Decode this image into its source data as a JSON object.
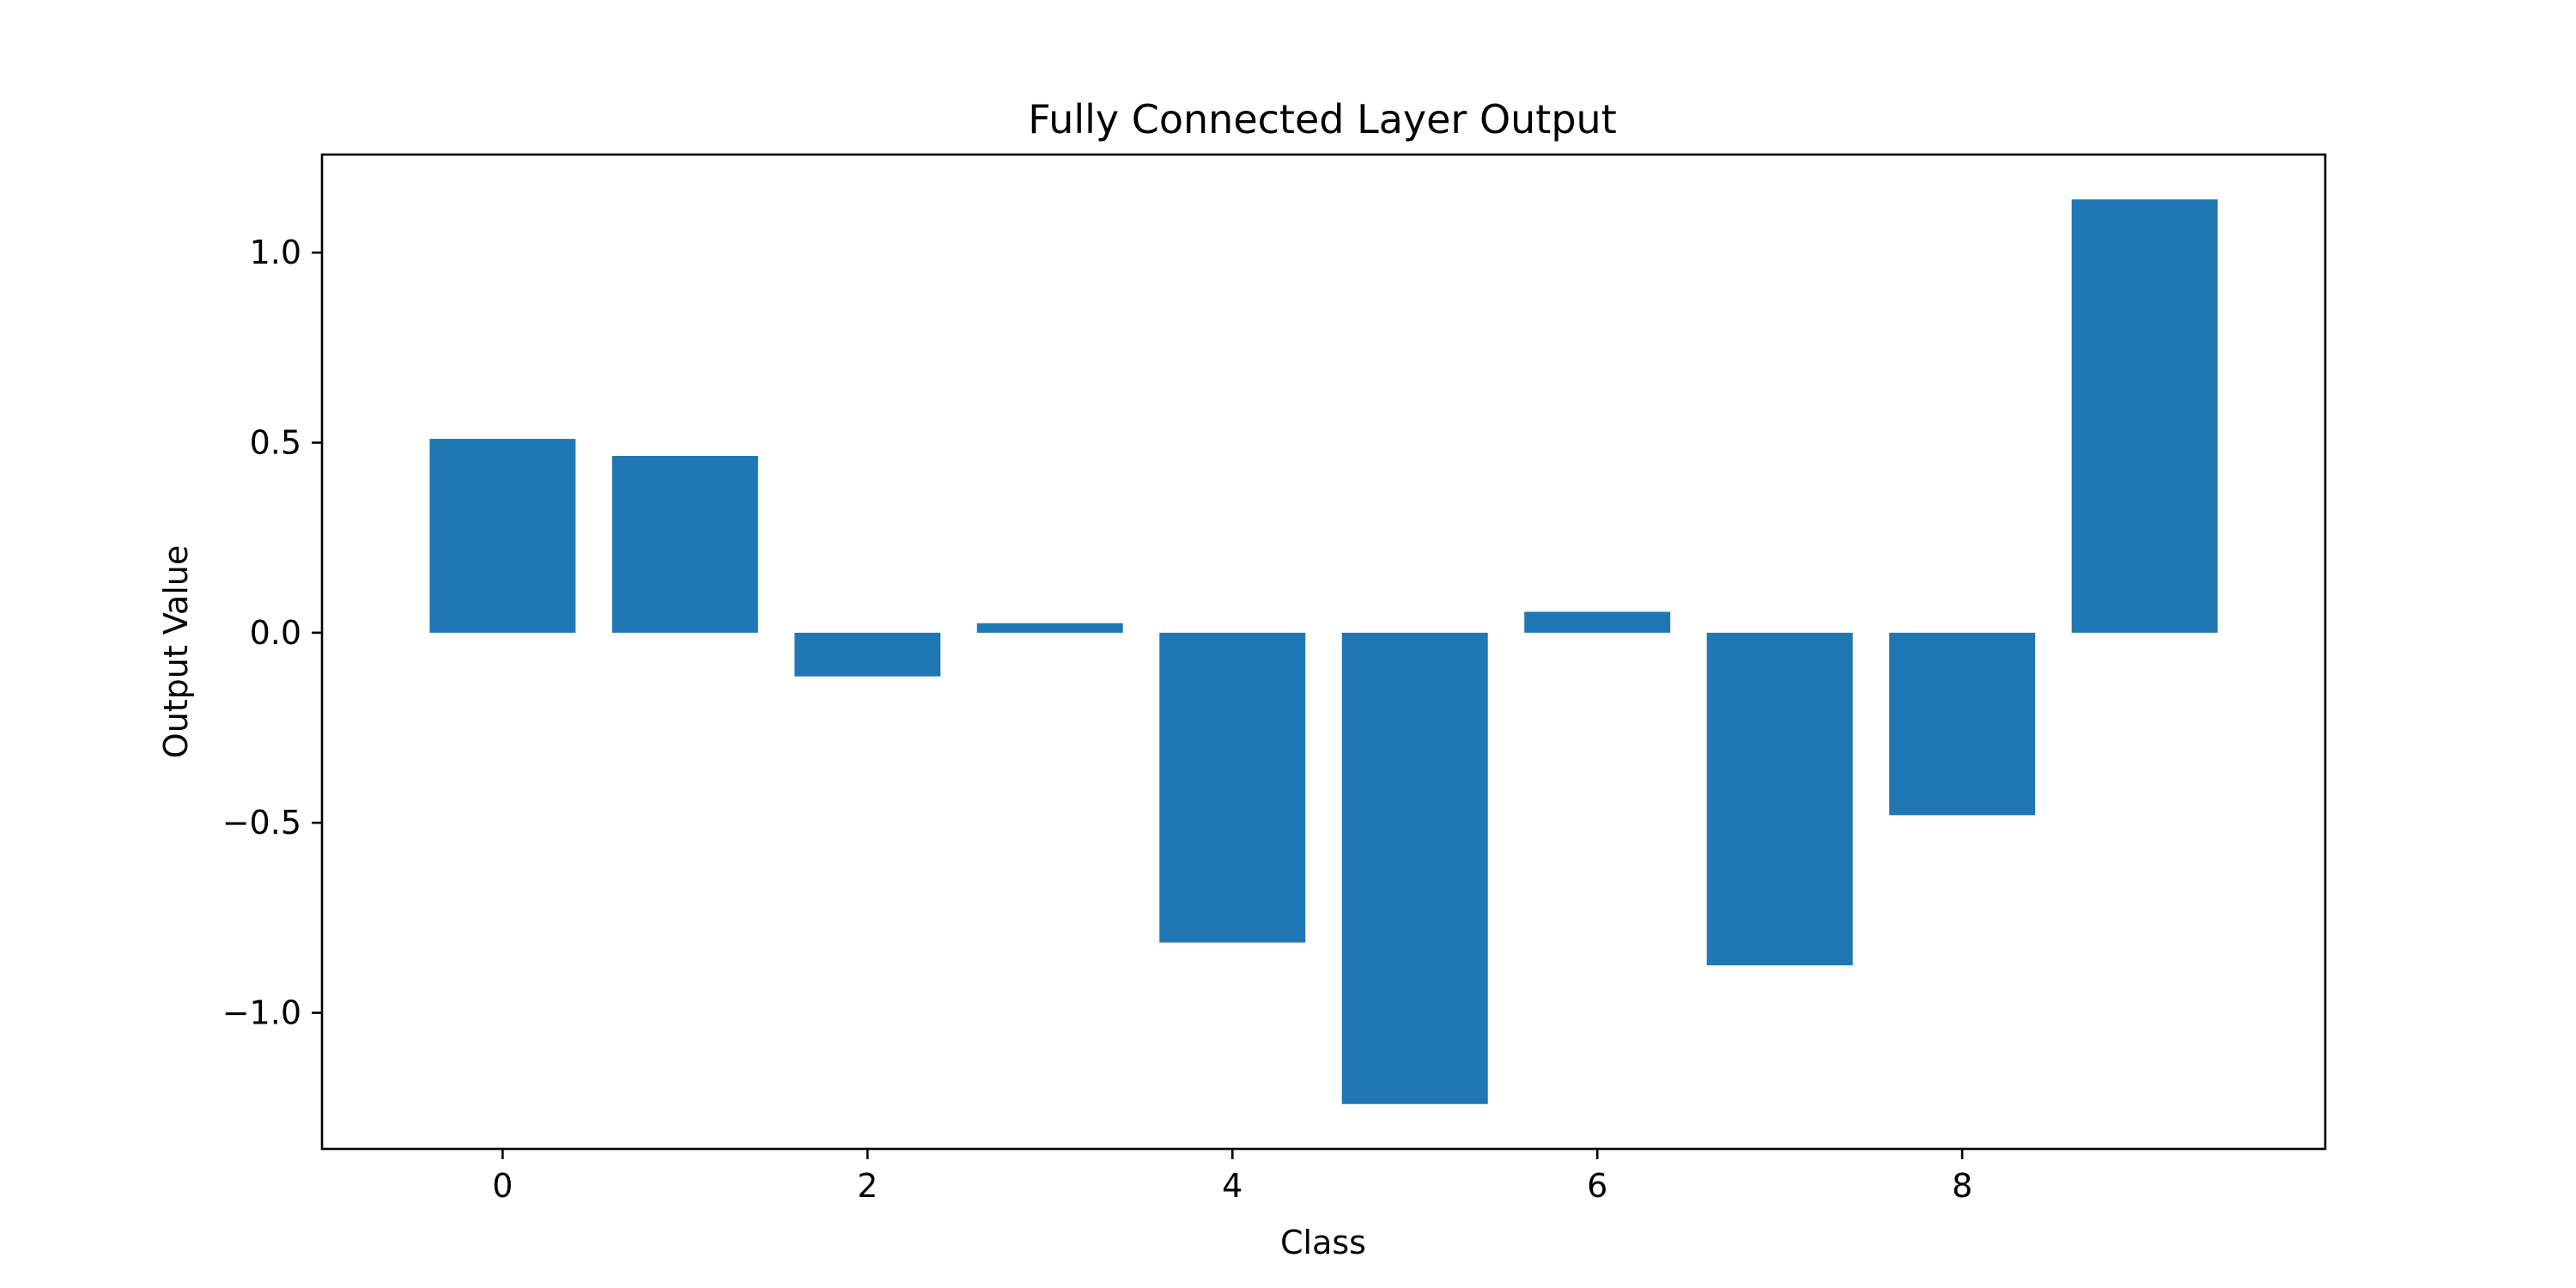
{
  "chart_data": {
    "type": "bar",
    "title": "Fully Connected Layer Output",
    "xlabel": "Class",
    "ylabel": "Output Value",
    "categories": [
      0,
      1,
      2,
      3,
      4,
      5,
      6,
      7,
      8,
      9
    ],
    "values": [
      0.51,
      0.465,
      -0.115,
      0.025,
      -0.815,
      -1.24,
      0.055,
      -0.875,
      -0.48,
      1.14
    ],
    "xlim": [
      -0.99,
      9.99
    ],
    "ylim": [
      -1.358,
      1.258
    ],
    "x_ticks": [
      0,
      2,
      4,
      6,
      8
    ],
    "x_tick_labels": [
      "0",
      "2",
      "4",
      "6",
      "8"
    ],
    "y_ticks": [
      -1.0,
      -0.5,
      0.0,
      0.5,
      1.0
    ],
    "y_tick_labels": [
      "−1.0",
      "−0.5",
      "0.0",
      "0.5",
      "1.0"
    ],
    "bar_color": "#1f77b4",
    "grid": false,
    "legend": false
  }
}
